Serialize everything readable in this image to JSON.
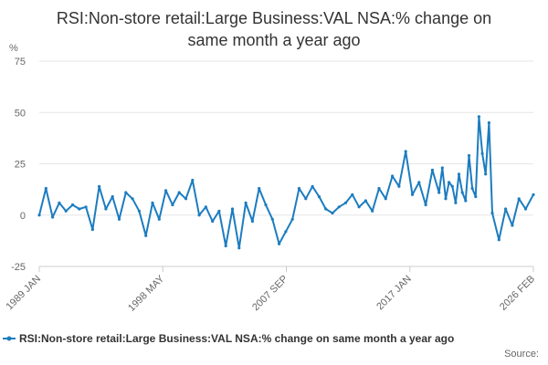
{
  "chart_data": {
    "type": "line",
    "title_lines": [
      "RSI:Non-store retail:Large Business:VAL NSA:% change on",
      "same month a year ago"
    ],
    "ylabel": "%",
    "xlabel": "",
    "ylim": [
      -25,
      75
    ],
    "yticks": [
      -25,
      0,
      25,
      50,
      75
    ],
    "xlim": [
      "1989-01",
      "2026-02"
    ],
    "xticks": [
      "1989 JAN",
      "1998 MAY",
      "2007 SEP",
      "2017 JAN",
      "2026 FEB"
    ],
    "grid": true,
    "legend_position": "bottom",
    "series": [
      {
        "name": "RSI:Non-store retail:Large Business:VAL NSA:% change on same month a year ago",
        "color": "#1c7cc0",
        "x": [
          "1989-01",
          "1989-07",
          "1990-01",
          "1990-07",
          "1991-01",
          "1991-07",
          "1992-01",
          "1992-07",
          "1993-01",
          "1993-07",
          "1994-01",
          "1994-07",
          "1995-01",
          "1995-07",
          "1996-01",
          "1996-07",
          "1997-01",
          "1997-07",
          "1998-01",
          "1998-07",
          "1999-01",
          "1999-07",
          "2000-01",
          "2000-07",
          "2001-01",
          "2001-07",
          "2002-01",
          "2002-07",
          "2003-01",
          "2003-07",
          "2004-01",
          "2004-07",
          "2005-01",
          "2005-07",
          "2006-01",
          "2006-07",
          "2007-01",
          "2007-07",
          "2008-01",
          "2008-07",
          "2009-01",
          "2009-07",
          "2010-01",
          "2010-07",
          "2011-01",
          "2011-07",
          "2012-01",
          "2012-07",
          "2013-01",
          "2013-07",
          "2014-01",
          "2014-07",
          "2015-01",
          "2015-07",
          "2016-01",
          "2016-07",
          "2017-01",
          "2017-07",
          "2018-01",
          "2018-07",
          "2019-01",
          "2019-04",
          "2019-07",
          "2019-10",
          "2020-01",
          "2020-04",
          "2020-07",
          "2020-10",
          "2021-01",
          "2021-04",
          "2021-07",
          "2021-10",
          "2022-01",
          "2022-04",
          "2022-07",
          "2022-10",
          "2023-01",
          "2023-07",
          "2024-01",
          "2024-07",
          "2025-01",
          "2025-07",
          "2026-02"
        ],
        "y": [
          0,
          13,
          -1,
          6,
          2,
          5,
          3,
          4,
          -7,
          14,
          3,
          9,
          -2,
          11,
          8,
          2,
          -10,
          6,
          -2,
          12,
          5,
          11,
          8,
          17,
          0,
          4,
          -3,
          2,
          -15,
          3,
          -16,
          6,
          -3,
          13,
          5,
          -2,
          -14,
          -8,
          -2,
          13,
          8,
          14,
          9,
          3,
          1,
          4,
          6,
          10,
          4,
          7,
          2,
          13,
          8,
          19,
          14,
          31,
          10,
          16,
          5,
          22,
          11,
          23,
          8,
          16,
          14,
          6,
          20,
          11,
          7,
          29,
          13,
          9,
          48,
          30,
          20,
          45,
          1,
          -12,
          3,
          -5,
          8,
          3,
          10
        ]
      }
    ],
    "source_label": "Source:"
  }
}
